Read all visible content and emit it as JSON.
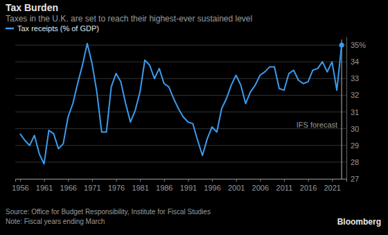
{
  "chart_data": {
    "type": "line",
    "title": "Tax Burden",
    "subtitle": "Taxes in the U.K. are set to reach their highest-ever sustained level",
    "x": [
      1956,
      1957,
      1958,
      1959,
      1960,
      1961,
      1962,
      1963,
      1964,
      1965,
      1966,
      1967,
      1968,
      1969,
      1970,
      1971,
      1972,
      1973,
      1974,
      1975,
      1976,
      1977,
      1978,
      1979,
      1980,
      1981,
      1982,
      1983,
      1984,
      1985,
      1986,
      1987,
      1988,
      1989,
      1990,
      1991,
      1992,
      1993,
      1994,
      1995,
      1996,
      1997,
      1998,
      1999,
      2000,
      2001,
      2002,
      2003,
      2004,
      2005,
      2006,
      2007,
      2008,
      2009,
      2010,
      2011,
      2012,
      2013,
      2014,
      2015,
      2016,
      2017,
      2018,
      2019,
      2020,
      2021,
      2022,
      2023
    ],
    "series": [
      {
        "name": "Tax receipts (% of GDP)",
        "color": "#3b9cf0",
        "values": [
          29.7,
          29.3,
          29.0,
          29.6,
          28.5,
          27.9,
          29.9,
          29.7,
          28.8,
          29.1,
          30.7,
          31.5,
          32.7,
          33.8,
          35.1,
          33.9,
          32.2,
          29.8,
          29.8,
          32.5,
          33.3,
          32.8,
          31.5,
          30.4,
          31.1,
          32.2,
          34.1,
          33.8,
          33.0,
          33.6,
          32.7,
          32.5,
          31.8,
          31.2,
          30.7,
          30.4,
          30.3,
          29.3,
          28.4,
          29.4,
          30.1,
          29.8,
          31.2,
          31.8,
          32.6,
          33.2,
          32.6,
          31.5,
          32.2,
          32.6,
          33.2,
          33.4,
          33.7,
          33.7,
          32.4,
          32.3,
          33.3,
          33.5,
          32.9,
          32.7,
          32.8,
          33.5,
          33.6,
          34.0,
          33.4,
          34.0,
          32.3,
          35.0
        ]
      }
    ],
    "xlim": [
      1955,
      2024
    ],
    "xticks": [
      1956,
      1961,
      1966,
      1971,
      1976,
      1981,
      1986,
      1991,
      1996,
      2001,
      2006,
      2011,
      2016,
      2021
    ],
    "ylim": [
      27,
      35.5
    ],
    "yticks": [
      27,
      28,
      29,
      30,
      31,
      32,
      33,
      34,
      {
        "value": 35,
        "label": "35%"
      }
    ],
    "grid": true,
    "legend": "top-left",
    "annotations": [
      {
        "text": "IFS forecast",
        "x": 2023
      }
    ],
    "source": "Source: Office for Budget Responsibility, Institute for Fiscal Studies",
    "note": "Note: Fiscal years ending March",
    "branding": "Bloomberg"
  }
}
